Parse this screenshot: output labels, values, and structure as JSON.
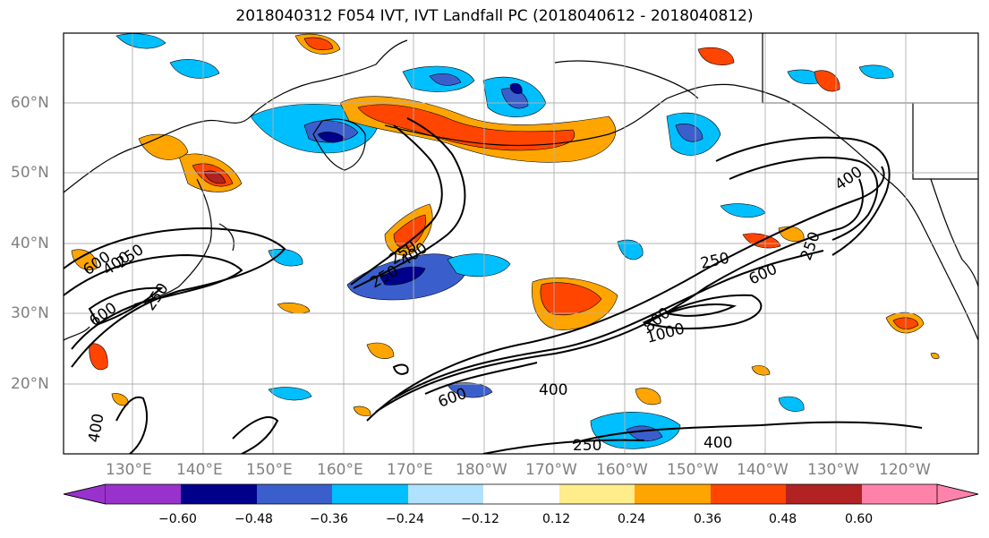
{
  "title": "2018040312 F054 IVT, IVT Landfall PC (2018040612 - 2018040812)",
  "lat_labels": [
    "60°N",
    "50°N",
    "40°N",
    "30°N",
    "20°N"
  ],
  "lon_labels": [
    "130°E",
    "140°E",
    "150°E",
    "160°E",
    "170°E",
    "180°W",
    "170°W",
    "160°W",
    "150°W",
    "140°W",
    "130°W",
    "120°W"
  ],
  "contour_labels": [
    "250",
    "400",
    "600",
    "250",
    "400",
    "250",
    "400",
    "250",
    "600",
    "800",
    "1000",
    "600",
    "400",
    "250",
    "400",
    "600",
    "250",
    "250",
    "400"
  ],
  "colorbar": {
    "ticks": [
      "−0.60",
      "−0.48",
      "−0.36",
      "−0.24",
      "−0.12",
      "0.12",
      "0.24",
      "0.36",
      "0.48",
      "0.60"
    ],
    "colors": [
      "#9932cc",
      "#00008b",
      "#3a5fcd",
      "#00bfff",
      "#b0e2ff",
      "#ffffff",
      "#ffec8b",
      "#ffa500",
      "#ff4500",
      "#b22222",
      "#ff82ab"
    ]
  }
}
